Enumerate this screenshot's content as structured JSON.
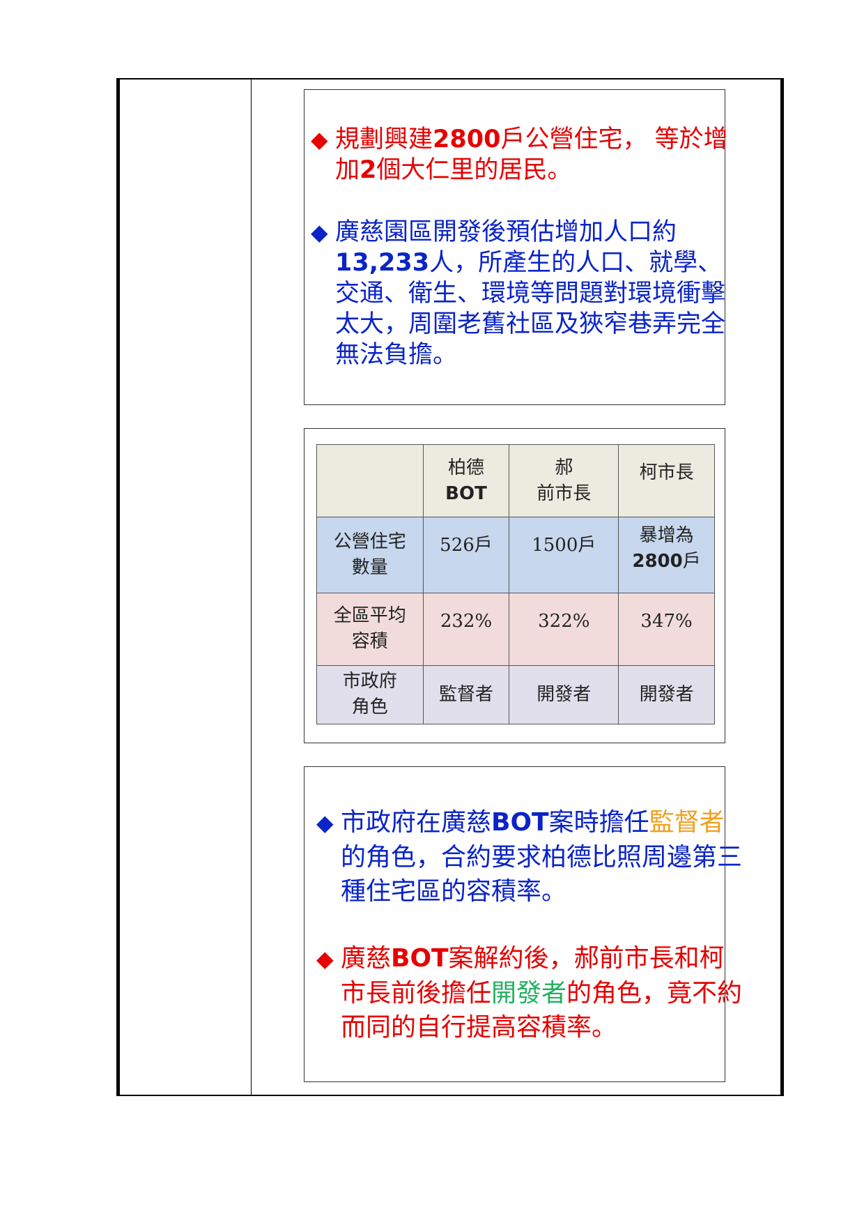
{
  "box1": {
    "bullet1": {
      "bullet": "◆",
      "part1": "規劃興建",
      "num": "2800",
      "part2": "戶公營住宅， 等於增加",
      "num2": "2",
      "part3": "個大仁里的居民。"
    },
    "bullet2": {
      "bullet": "◆",
      "part1": "廣慈園區開發後預估增加人口約",
      "num": "13,233",
      "part2": "人，所產生的人口、就學、交通、衛生、環境等問題對環境衝擊太大，周圍老舊社區及狹窄巷弄完全無法負擔。"
    }
  },
  "table": {
    "headers": [
      "",
      "柏德",
      "郝",
      "柯市長"
    ],
    "header_sub": [
      "",
      "BOT",
      "前市長",
      ""
    ],
    "rows": [
      {
        "label_line1": "公營住宅",
        "label_line2": "數量",
        "c1": "526戶",
        "c2": "1500戶",
        "c3_line1": "暴增為",
        "c3_num": "2800",
        "c3_unit": "戶"
      },
      {
        "label_line1": "全區平均",
        "label_line2": "容積",
        "c1": "232%",
        "c2": "322%",
        "c3": "347%"
      },
      {
        "label_line1": "市政府",
        "label_line2": "角色",
        "c1": "監督者",
        "c2": "開發者",
        "c3": "開發者"
      }
    ]
  },
  "box3": {
    "bullet1": {
      "bullet": "◆",
      "part1": "市政府在廣慈",
      "bot": "BOT",
      "part2": "案時擔任",
      "highlight": "監督者",
      "part3": "的角色，合約要求柏德比照周邊第三種住宅區的容積率。"
    },
    "bullet2": {
      "bullet": "◆",
      "part1": "廣慈",
      "bot": "BOT",
      "part2": "案解約後，郝前市長和柯市長前後擔任",
      "highlight": "開發者",
      "part3": "的角色，竟不約而同的自行提高容積率。"
    }
  },
  "colors": {
    "red": "#e60000",
    "blue": "#0a24c8",
    "orange": "#f0a020",
    "green": "#22b060",
    "header_bg": "#ecebdf",
    "row1_bg": "#c6d7ee",
    "row2_bg": "#f2dcdb",
    "row3_bg": "#e2dfec"
  }
}
